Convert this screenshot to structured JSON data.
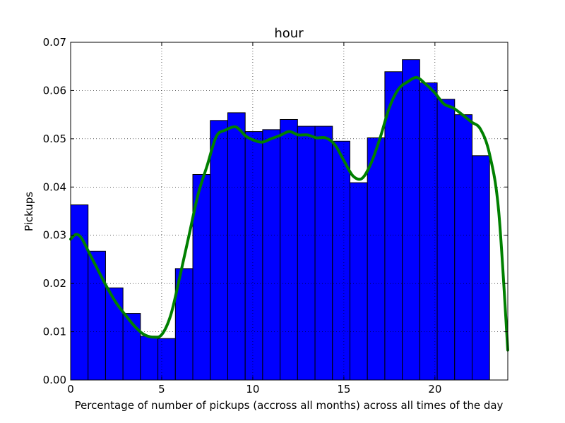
{
  "chart_data": {
    "type": "bar",
    "title": "hour",
    "xlabel": "Percentage of number of pickups (accross all months) across all times of the day",
    "ylabel": "Pickups",
    "xlim": [
      0,
      24
    ],
    "ylim": [
      0,
      0.07
    ],
    "xticks": [
      0,
      5,
      10,
      15,
      20
    ],
    "xtick_labels": [
      "0",
      "5",
      "10",
      "15",
      "20"
    ],
    "yticks": [
      0,
      0.01,
      0.02,
      0.03,
      0.04,
      0.05,
      0.06,
      0.07
    ],
    "ytick_labels": [
      "0.00",
      "0.01",
      "0.02",
      "0.03",
      "0.04",
      "0.05",
      "0.06",
      "0.07"
    ],
    "grid": true,
    "bars": {
      "bin_width": 0.9583,
      "starts": [
        0,
        0.9583,
        1.9167,
        2.875,
        3.8333,
        4.7917,
        5.75,
        6.7083,
        7.6667,
        8.625,
        9.5833,
        10.5417,
        11.5,
        12.4583,
        13.4167,
        14.375,
        15.3333,
        16.2917,
        17.25,
        18.2083,
        19.1667,
        20.125,
        21.0833,
        22.0417
      ],
      "values": [
        0.0363,
        0.0267,
        0.0191,
        0.0138,
        0.0091,
        0.0086,
        0.0231,
        0.0426,
        0.0538,
        0.0554,
        0.0515,
        0.0519,
        0.054,
        0.0526,
        0.0526,
        0.0495,
        0.0409,
        0.0502,
        0.0639,
        0.0664,
        0.0616,
        0.0582,
        0.055,
        0.0465
      ],
      "color": "#0000ff"
    },
    "density": {
      "color": "#008000",
      "x": [
        0,
        0.3,
        0.6,
        1.0,
        1.5,
        2.0,
        2.5,
        3.0,
        3.5,
        4.0,
        4.5,
        5.0,
        5.5,
        6.0,
        6.5,
        7.0,
        7.5,
        8.0,
        8.5,
        9.0,
        9.3,
        9.6,
        10.0,
        10.5,
        11.0,
        11.5,
        12.0,
        12.5,
        13.0,
        13.5,
        14.0,
        14.5,
        15.0,
        15.5,
        16.0,
        16.5,
        17.0,
        17.5,
        18.0,
        18.5,
        19.0,
        19.5,
        20.0,
        20.5,
        21.0,
        21.5,
        22.0,
        22.5,
        23.0,
        23.5,
        24.0
      ],
      "y": [
        0.0292,
        0.0302,
        0.0294,
        0.0265,
        0.0228,
        0.0192,
        0.016,
        0.0135,
        0.0112,
        0.0095,
        0.0089,
        0.0094,
        0.0135,
        0.0215,
        0.03,
        0.0385,
        0.0445,
        0.0505,
        0.0518,
        0.0525,
        0.0518,
        0.0506,
        0.0498,
        0.0493,
        0.05,
        0.0507,
        0.0515,
        0.0508,
        0.0508,
        0.0502,
        0.0502,
        0.0488,
        0.0455,
        0.0423,
        0.0418,
        0.045,
        0.0503,
        0.0565,
        0.0603,
        0.0618,
        0.0627,
        0.0613,
        0.0595,
        0.0572,
        0.0564,
        0.055,
        0.0535,
        0.052,
        0.0468,
        0.035,
        0.0062
      ]
    }
  }
}
